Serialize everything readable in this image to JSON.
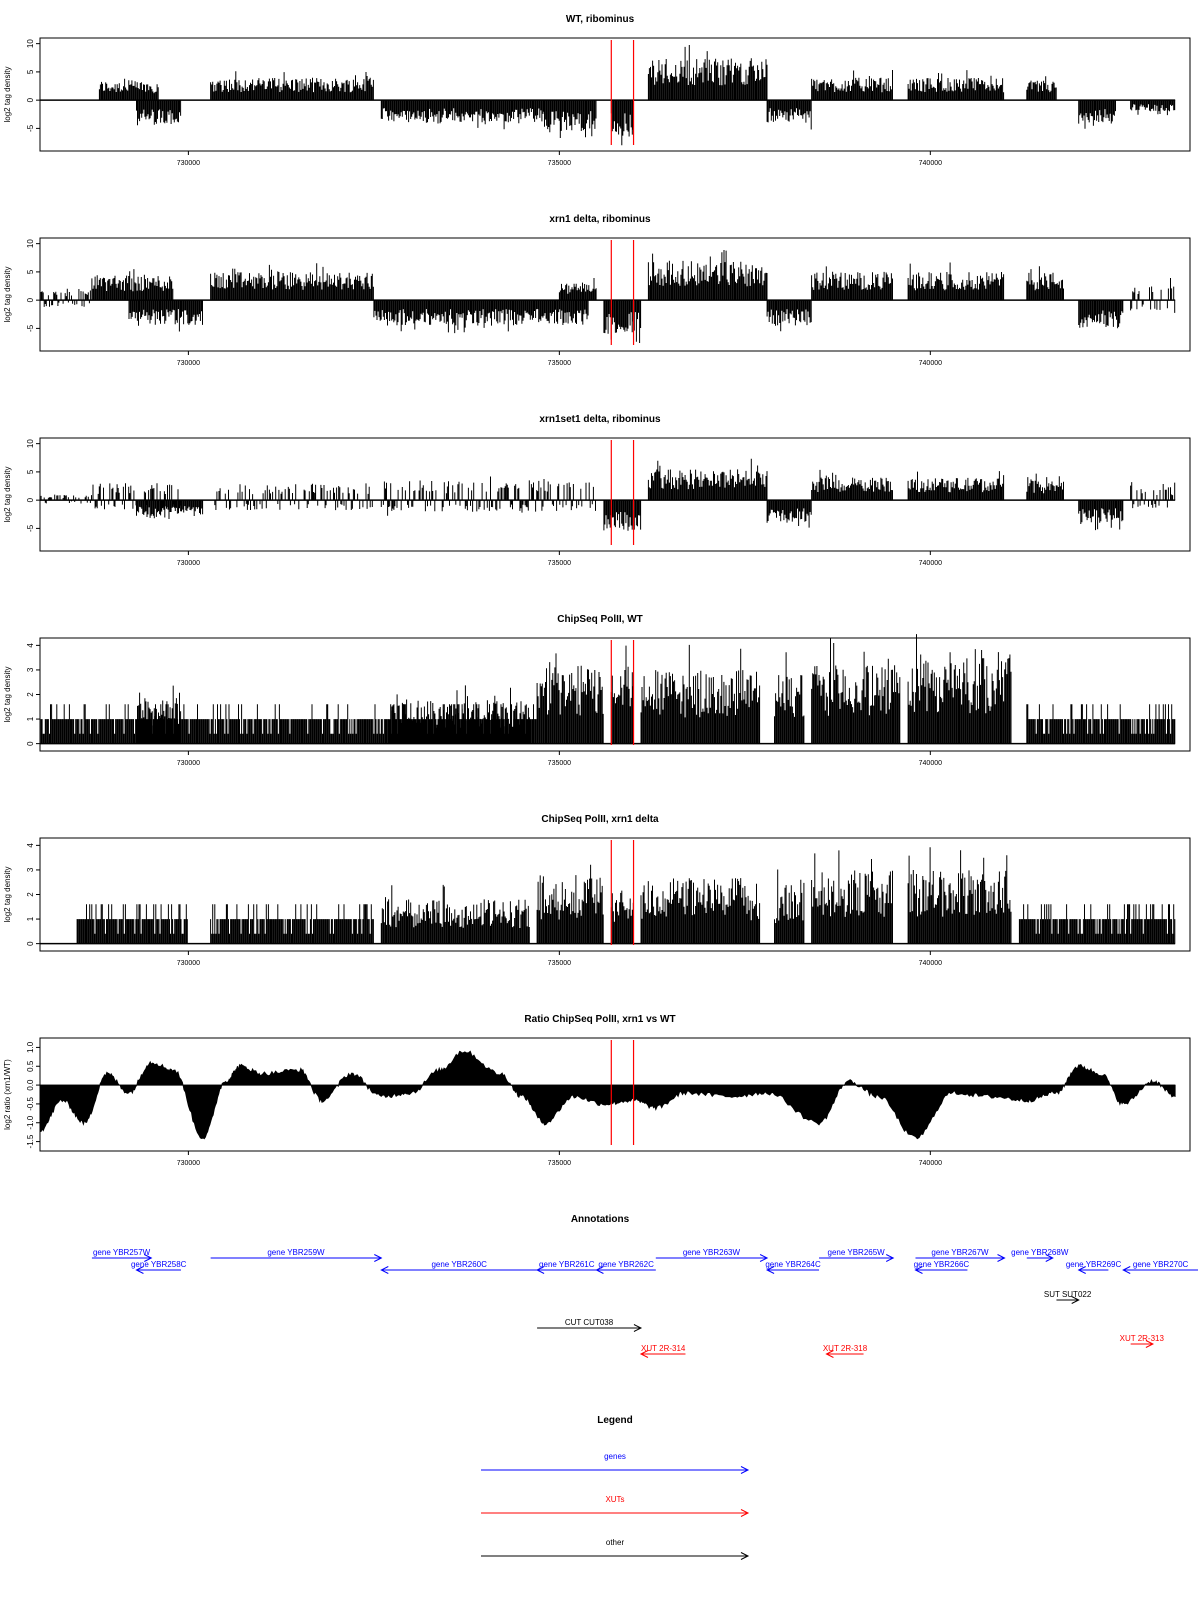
{
  "chart_data": [
    {
      "type": "bar",
      "title": "WT, ribominus",
      "ylabel": "log2 tag density",
      "xlabel": "",
      "xlim": [
        728000,
        743500
      ],
      "ylim": [
        -9,
        11
      ],
      "yticks": [
        -5,
        0,
        5,
        10
      ],
      "xticks": [
        730000,
        735000,
        740000
      ],
      "xtick_labels": [
        "730000",
        "735000",
        "740000"
      ],
      "grid": false,
      "markers": [
        735700,
        736000
      ],
      "marker_color": "#ff0000",
      "series": [
        {
          "values": [
            {
              "x0": 728800,
              "x1": 729600,
              "mode": "pos",
              "amp": 3.5
            },
            {
              "x0": 729300,
              "x1": 729900,
              "mode": "neg",
              "amp": 4.5
            },
            {
              "x0": 730300,
              "x1": 732500,
              "mode": "pos",
              "amp": 4.0
            },
            {
              "x0": 732600,
              "x1": 734800,
              "mode": "neg",
              "amp": 4.0
            },
            {
              "x0": 734800,
              "x1": 735500,
              "mode": "neg",
              "amp": 5.5
            },
            {
              "x0": 735700,
              "x1": 736000,
              "mode": "neg",
              "amp": 6.5
            },
            {
              "x0": 736200,
              "x1": 737800,
              "mode": "pos",
              "amp": 7.5
            },
            {
              "x0": 737800,
              "x1": 738400,
              "mode": "neg",
              "amp": 4.0
            },
            {
              "x0": 738400,
              "x1": 739500,
              "mode": "pos",
              "amp": 4.0
            },
            {
              "x0": 739700,
              "x1": 741000,
              "mode": "pos",
              "amp": 4.0
            },
            {
              "x0": 741300,
              "x1": 741700,
              "mode": "pos",
              "amp": 3.5
            },
            {
              "x0": 742000,
              "x1": 742500,
              "mode": "neg",
              "amp": 4.0
            },
            {
              "x0": 742700,
              "x1": 743300,
              "mode": "neg",
              "amp": 2.0
            }
          ]
        }
      ]
    },
    {
      "type": "bar",
      "title": "xrn1 delta, ribominus",
      "ylabel": "log2 tag density",
      "xlabel": "",
      "xlim": [
        728000,
        743500
      ],
      "ylim": [
        -9,
        11
      ],
      "yticks": [
        -5,
        0,
        5,
        10
      ],
      "xticks": [
        730000,
        735000,
        740000
      ],
      "xtick_labels": [
        "730000",
        "735000",
        "740000"
      ],
      "grid": false,
      "markers": [
        735700,
        736000
      ],
      "marker_color": "#ff0000",
      "series": [
        {
          "values": [
            {
              "x0": 728000,
              "x1": 728700,
              "mode": "mix",
              "amp": 2.0
            },
            {
              "x0": 728700,
              "x1": 729800,
              "mode": "pos",
              "amp": 4.5
            },
            {
              "x0": 729200,
              "x1": 730200,
              "mode": "neg",
              "amp": 4.5
            },
            {
              "x0": 730300,
              "x1": 732500,
              "mode": "pos",
              "amp": 5.0
            },
            {
              "x0": 732500,
              "x1": 735400,
              "mode": "neg",
              "amp": 4.5
            },
            {
              "x0": 735000,
              "x1": 735500,
              "mode": "pos",
              "amp": 3.0
            },
            {
              "x0": 735600,
              "x1": 736100,
              "mode": "neg",
              "amp": 6.0
            },
            {
              "x0": 736200,
              "x1": 737800,
              "mode": "pos",
              "amp": 7.0
            },
            {
              "x0": 737800,
              "x1": 738400,
              "mode": "neg",
              "amp": 4.5
            },
            {
              "x0": 738400,
              "x1": 739500,
              "mode": "pos",
              "amp": 5.0
            },
            {
              "x0": 739700,
              "x1": 741000,
              "mode": "pos",
              "amp": 5.0
            },
            {
              "x0": 741300,
              "x1": 741800,
              "mode": "pos",
              "amp": 5.0
            },
            {
              "x0": 742000,
              "x1": 742600,
              "mode": "neg",
              "amp": 5.0
            },
            {
              "x0": 742700,
              "x1": 743300,
              "mode": "mix",
              "amp": 3.0
            }
          ]
        }
      ]
    },
    {
      "type": "bar",
      "title": "xrn1set1 delta, ribominus",
      "ylabel": "log2 tag density",
      "xlabel": "",
      "xlim": [
        728000,
        743500
      ],
      "ylim": [
        -9,
        11
      ],
      "yticks": [
        -5,
        0,
        5,
        10
      ],
      "xticks": [
        730000,
        735000,
        740000
      ],
      "xtick_labels": [
        "730000",
        "735000",
        "740000"
      ],
      "grid": false,
      "markers": [
        735700,
        736000
      ],
      "marker_color": "#ff0000",
      "series": [
        {
          "values": [
            {
              "x0": 728000,
              "x1": 728700,
              "mode": "mix",
              "amp": 1.0
            },
            {
              "x0": 728700,
              "x1": 729900,
              "mode": "mix",
              "amp": 3.0
            },
            {
              "x0": 729300,
              "x1": 730200,
              "mode": "neg",
              "amp": 3.0
            },
            {
              "x0": 730300,
              "x1": 732500,
              "mode": "mix",
              "amp": 3.0
            },
            {
              "x0": 732600,
              "x1": 735500,
              "mode": "mix",
              "amp": 3.5
            },
            {
              "x0": 735600,
              "x1": 736100,
              "mode": "neg",
              "amp": 5.5
            },
            {
              "x0": 736200,
              "x1": 737800,
              "mode": "pos",
              "amp": 5.5
            },
            {
              "x0": 737800,
              "x1": 738400,
              "mode": "neg",
              "amp": 4.0
            },
            {
              "x0": 738400,
              "x1": 739500,
              "mode": "pos",
              "amp": 4.0
            },
            {
              "x0": 739700,
              "x1": 741000,
              "mode": "pos",
              "amp": 4.0
            },
            {
              "x0": 741300,
              "x1": 741800,
              "mode": "pos",
              "amp": 3.5
            },
            {
              "x0": 742000,
              "x1": 742600,
              "mode": "neg",
              "amp": 4.0
            },
            {
              "x0": 742700,
              "x1": 743300,
              "mode": "mix",
              "amp": 2.5
            }
          ]
        }
      ]
    },
    {
      "type": "bar",
      "title": "ChipSeq PolII, WT",
      "ylabel": "log2 tag density",
      "xlabel": "",
      "xlim": [
        728000,
        743500
      ],
      "ylim": [
        -0.3,
        4.3
      ],
      "yticks": [
        0,
        1,
        2,
        3,
        4
      ],
      "xticks": [
        730000,
        735000,
        740000
      ],
      "xtick_labels": [
        "730000",
        "735000",
        "740000"
      ],
      "grid": false,
      "markers": [
        735700,
        736000
      ],
      "marker_color": "#ff0000",
      "series": [
        {
          "values": [
            {
              "x0": 728000,
              "x1": 734700,
              "mode": "pos",
              "amp": 1.2
            },
            {
              "x0": 729300,
              "x1": 729900,
              "mode": "pos",
              "amp": 1.8
            },
            {
              "x0": 732700,
              "x1": 734600,
              "mode": "pos",
              "amp": 1.8
            },
            {
              "x0": 734700,
              "x1": 735600,
              "mode": "pos",
              "amp": 3.2
            },
            {
              "x0": 735700,
              "x1": 736000,
              "mode": "pos",
              "amp": 3.0
            },
            {
              "x0": 736100,
              "x1": 737700,
              "mode": "pos",
              "amp": 3.0
            },
            {
              "x0": 737900,
              "x1": 738300,
              "mode": "pos",
              "amp": 2.8
            },
            {
              "x0": 738400,
              "x1": 739600,
              "mode": "pos",
              "amp": 3.2
            },
            {
              "x0": 739700,
              "x1": 741100,
              "mode": "pos",
              "amp": 3.5
            },
            {
              "x0": 741300,
              "x1": 743300,
              "mode": "pos",
              "amp": 1.5
            }
          ]
        }
      ]
    },
    {
      "type": "bar",
      "title": "ChipSeq PolII, xrn1 delta",
      "ylabel": "log2 tag density",
      "xlabel": "",
      "xlim": [
        728000,
        743500
      ],
      "ylim": [
        -0.3,
        4.3
      ],
      "yticks": [
        0,
        1,
        2,
        3,
        4
      ],
      "xticks": [
        730000,
        735000,
        740000
      ],
      "xtick_labels": [
        "730000",
        "735000",
        "740000"
      ],
      "grid": false,
      "markers": [
        735700,
        736000
      ],
      "marker_color": "#ff0000",
      "series": [
        {
          "values": [
            {
              "x0": 728500,
              "x1": 730000,
              "mode": "pos",
              "amp": 1.2
            },
            {
              "x0": 730300,
              "x1": 732500,
              "mode": "pos",
              "amp": 0.8
            },
            {
              "x0": 732600,
              "x1": 734600,
              "mode": "pos",
              "amp": 1.8
            },
            {
              "x0": 734700,
              "x1": 735600,
              "mode": "pos",
              "amp": 2.8
            },
            {
              "x0": 735700,
              "x1": 736000,
              "mode": "pos",
              "amp": 2.2
            },
            {
              "x0": 736100,
              "x1": 737700,
              "mode": "pos",
              "amp": 2.7
            },
            {
              "x0": 737900,
              "x1": 738300,
              "mode": "pos",
              "amp": 2.4
            },
            {
              "x0": 738400,
              "x1": 739500,
              "mode": "pos",
              "amp": 3.0
            },
            {
              "x0": 739700,
              "x1": 741100,
              "mode": "pos",
              "amp": 3.0
            },
            {
              "x0": 741200,
              "x1": 743300,
              "mode": "pos",
              "amp": 1.5
            }
          ]
        }
      ]
    },
    {
      "type": "area",
      "title": "Ratio ChipSeq PolII, xrn1 vs WT",
      "ylabel": "log2 ratio (xrn1/WT)",
      "xlabel": "",
      "xlim": [
        728000,
        743500
      ],
      "ylim": [
        -1.75,
        1.25
      ],
      "yticks": [
        -1.5,
        -1.0,
        -0.5,
        0.0,
        0.5,
        1.0
      ],
      "ytick_labels": [
        "-1.5",
        "-1.0",
        "-0.5",
        "0.0",
        "0.5",
        "1.0"
      ],
      "xticks": [
        730000,
        735000,
        740000
      ],
      "xtick_labels": [
        "730000",
        "735000",
        "740000"
      ],
      "grid": false,
      "markers": [
        735700,
        736000
      ],
      "marker_color": "#ff0000",
      "series": [
        {
          "x": [
            728000,
            728300,
            728600,
            728900,
            729200,
            729500,
            729800,
            730200,
            730500,
            730700,
            731000,
            731500,
            731800,
            732200,
            732600,
            733000,
            733400,
            733700,
            734200,
            734500,
            734800,
            735200,
            735600,
            736000,
            736300,
            736700,
            737300,
            737800,
            738500,
            738900,
            739300,
            739800,
            740300,
            740800,
            741300,
            741700,
            742000,
            742300,
            742600,
            743000,
            743300
          ],
          "y": [
            -1.2,
            -0.4,
            -1.0,
            0.3,
            -0.2,
            0.6,
            0.4,
            -1.4,
            0.1,
            0.5,
            0.3,
            0.4,
            -0.4,
            0.3,
            -0.3,
            -0.2,
            0.4,
            0.9,
            0.3,
            -0.3,
            -1.0,
            -0.3,
            -0.5,
            -0.4,
            -0.6,
            -0.2,
            -0.3,
            -0.2,
            -1.0,
            0.1,
            -0.3,
            -1.4,
            -0.2,
            -0.3,
            -0.4,
            -0.2,
            0.5,
            0.3,
            -0.5,
            0.1,
            -0.3
          ]
        }
      ]
    }
  ],
  "annotations": {
    "title": "Annotations",
    "xlim": [
      728000,
      743500
    ],
    "features": [
      {
        "label": "gene YBR257W",
        "x0": 728700,
        "x1": 729500,
        "dir": ">",
        "kind": "gene",
        "row": 0
      },
      {
        "label": "gene YBR258C",
        "x0": 729300,
        "x1": 729900,
        "dir": "<",
        "kind": "gene",
        "row": 1
      },
      {
        "label": "gene YBR259W",
        "x0": 730300,
        "x1": 732600,
        "dir": ">",
        "kind": "gene",
        "row": 0
      },
      {
        "label": "gene YBR260C",
        "x0": 732600,
        "x1": 734700,
        "dir": "<",
        "kind": "gene",
        "row": 1
      },
      {
        "label": "gene YBR261C",
        "x0": 734700,
        "x1": 735500,
        "dir": "<",
        "kind": "gene",
        "row": 1
      },
      {
        "label": "gene YBR262C",
        "x0": 735500,
        "x1": 736300,
        "dir": "<",
        "kind": "gene",
        "row": 1
      },
      {
        "label": "gene YBR263W",
        "x0": 736300,
        "x1": 737800,
        "dir": ">",
        "kind": "gene",
        "row": 0
      },
      {
        "label": "gene YBR264C",
        "x0": 737800,
        "x1": 738500,
        "dir": "<",
        "kind": "gene",
        "row": 1
      },
      {
        "label": "gene YBR265W",
        "x0": 738500,
        "x1": 739500,
        "dir": ">",
        "kind": "gene",
        "row": 0
      },
      {
        "label": "gene YBR267W",
        "x0": 739800,
        "x1": 741000,
        "dir": ">",
        "kind": "gene",
        "row": 0
      },
      {
        "label": "gene YBR266C",
        "x0": 739800,
        "x1": 740500,
        "dir": "<",
        "kind": "gene",
        "row": 1
      },
      {
        "label": "gene YBR268W",
        "x0": 741300,
        "x1": 741650,
        "dir": ">",
        "kind": "gene",
        "row": 0
      },
      {
        "label": "gene YBR269C",
        "x0": 742000,
        "x1": 742400,
        "dir": "<",
        "kind": "gene",
        "row": 1
      },
      {
        "label": "gene YBR270C",
        "x0": 742600,
        "x1": 743800,
        "dir": "<",
        "kind": "gene",
        "row": 1
      },
      {
        "label": "SUT SUT022",
        "x0": 741700,
        "x1": 742000,
        "dir": ">",
        "kind": "other",
        "row": 2
      },
      {
        "label": "CUT CUT038",
        "x0": 734700,
        "x1": 736100,
        "dir": ">",
        "kind": "other",
        "row": 3
      },
      {
        "label": "XUT 2R-314",
        "x0": 736100,
        "x1": 736700,
        "dir": "<",
        "kind": "xut",
        "row": 4
      },
      {
        "label": "XUT 2R-318",
        "x0": 738600,
        "x1": 739100,
        "dir": "<",
        "kind": "xut",
        "row": 4
      },
      {
        "label": "XUT 2R-313",
        "x0": 742700,
        "x1": 743000,
        "dir": ">",
        "kind": "xut",
        "row": 5
      }
    ]
  },
  "legend": {
    "title": "Legend",
    "items": [
      {
        "label": "genes",
        "color": "#0000ff"
      },
      {
        "label": "XUTs",
        "color": "#ff0000"
      },
      {
        "label": "other",
        "color": "#000000"
      }
    ]
  },
  "colors": {
    "gene": "#0000ff",
    "xut": "#ff0000",
    "other": "#000000",
    "data": "#000000",
    "marker": "#ff0000"
  }
}
